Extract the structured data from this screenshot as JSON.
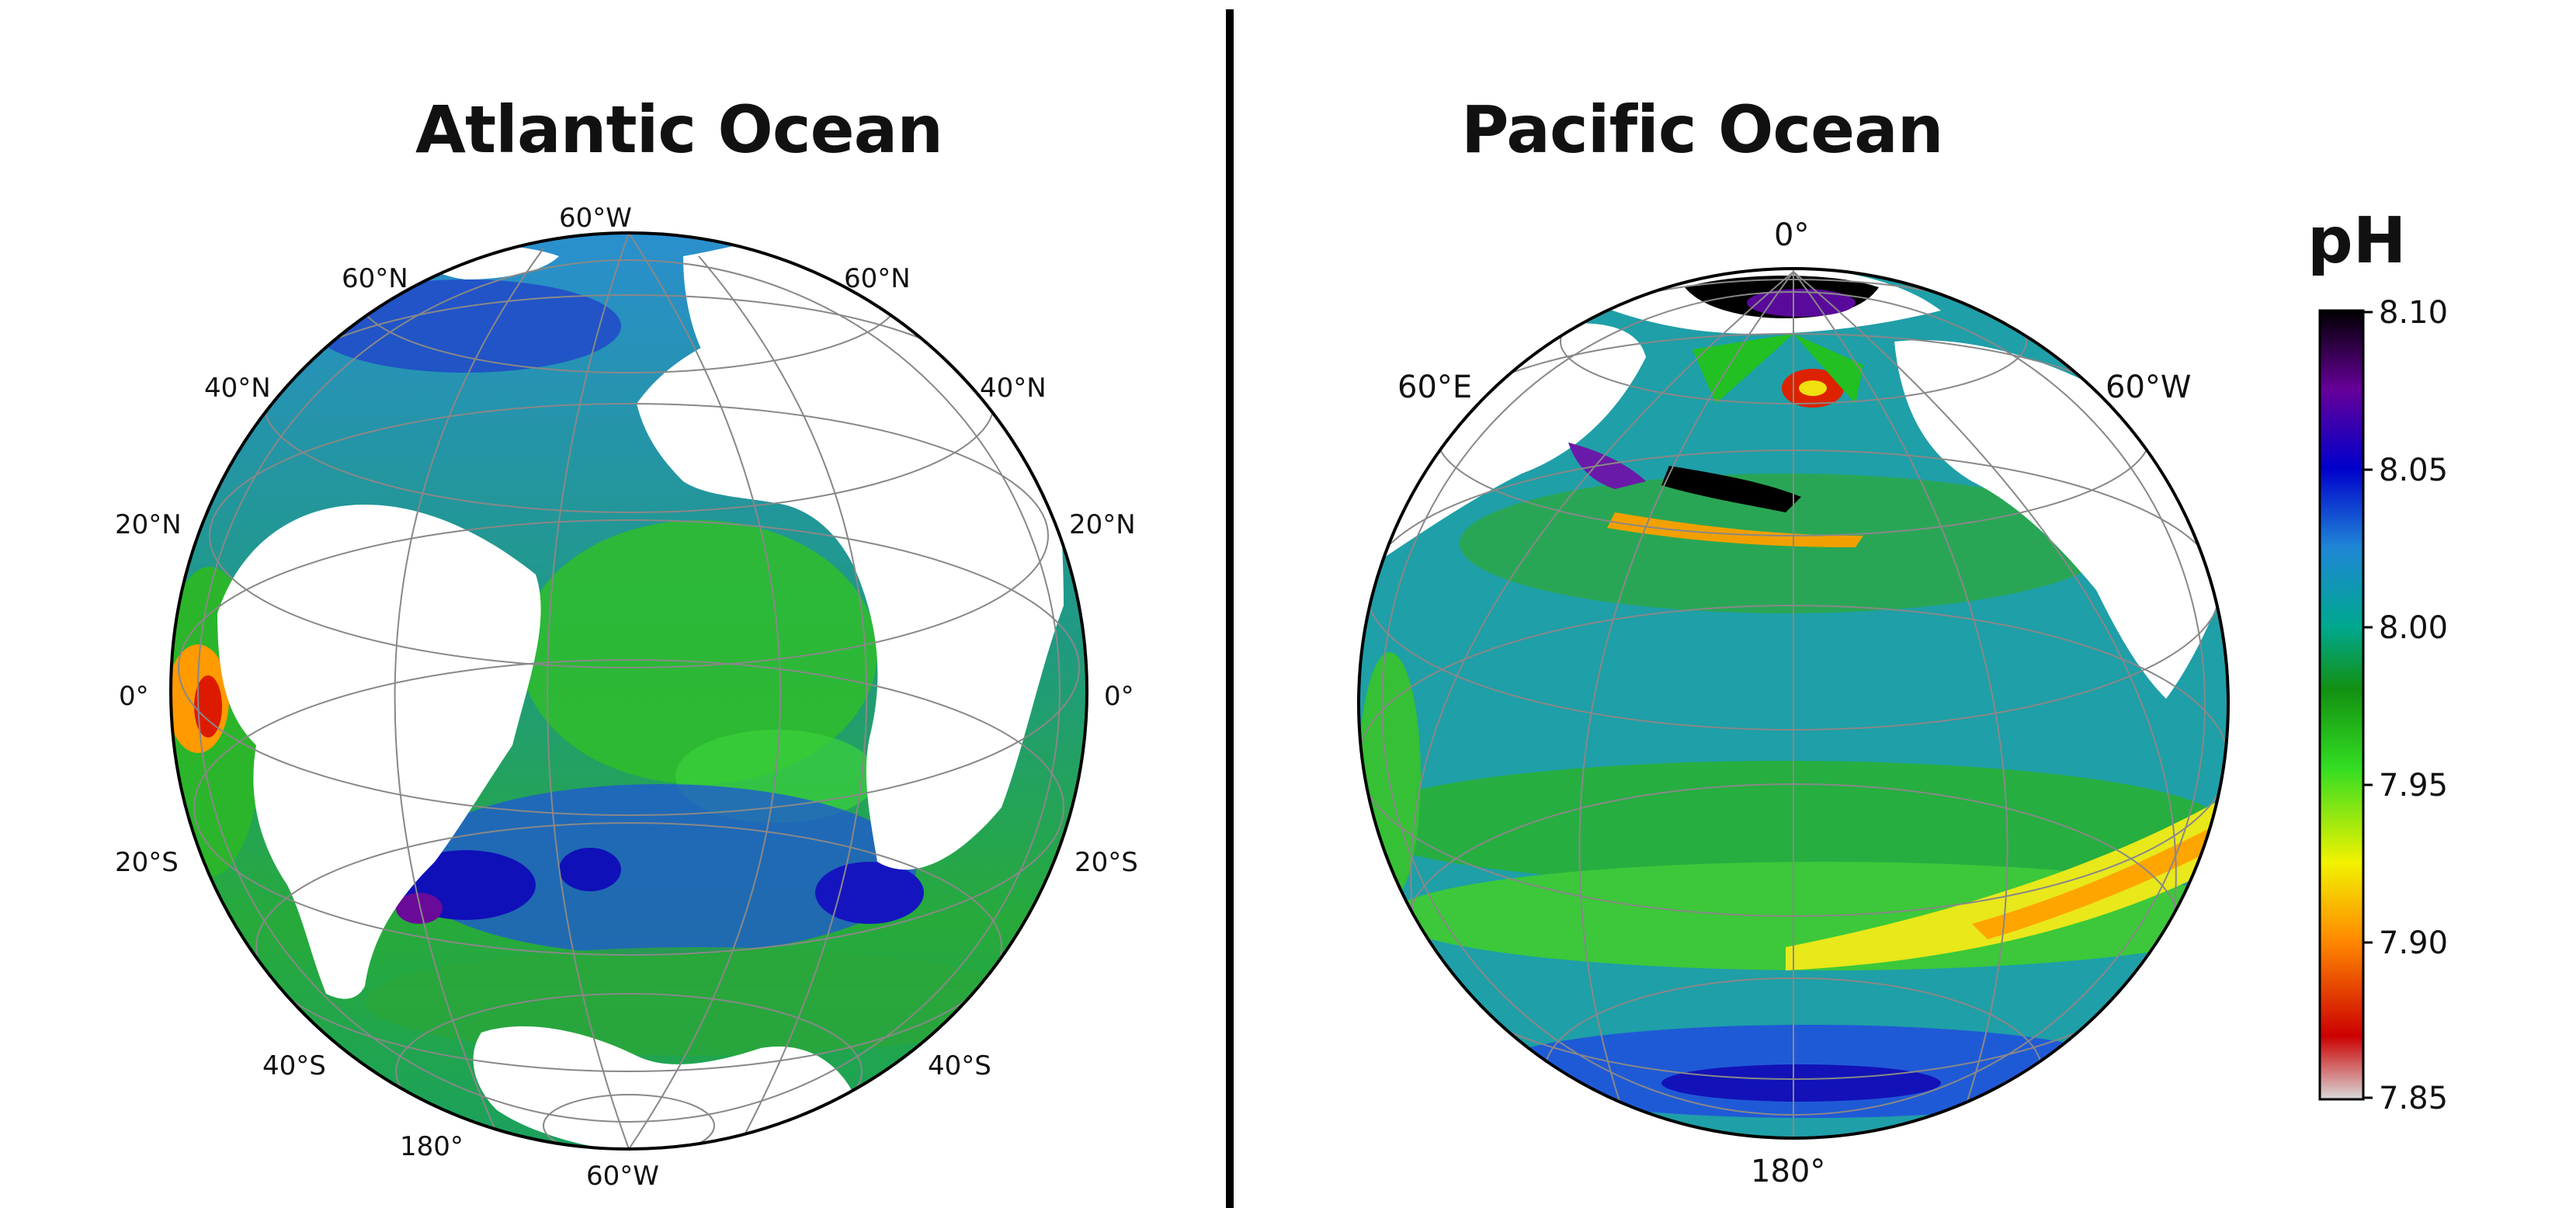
{
  "atlantic": {
    "title": "Atlantic Ocean",
    "lon_labels": [
      "60°W",
      "180°",
      "60°W"
    ],
    "lat_labels": [
      "60°N",
      "60°N",
      "40°N",
      "40°N",
      "20°N",
      "20°N",
      "0°",
      "0°",
      "20°S",
      "20°S",
      "40°S",
      "40°S"
    ]
  },
  "pacific": {
    "title": "Pacific Ocean",
    "lon_labels": [
      "0°",
      "60°E",
      "60°W",
      "180°"
    ]
  },
  "colorbar": {
    "title": "pH",
    "ticks": [
      "8.10",
      "8.05",
      "8.00",
      "7.95",
      "7.90",
      "7.85"
    ],
    "range": [
      7.85,
      8.1
    ],
    "colors": [
      "#d9d9d9",
      "#cc0000",
      "#ff8800",
      "#f2f200",
      "#33dd22",
      "#129012",
      "#00a890",
      "#1f86d6",
      "#0000cc",
      "#660099",
      "#000000"
    ]
  }
}
